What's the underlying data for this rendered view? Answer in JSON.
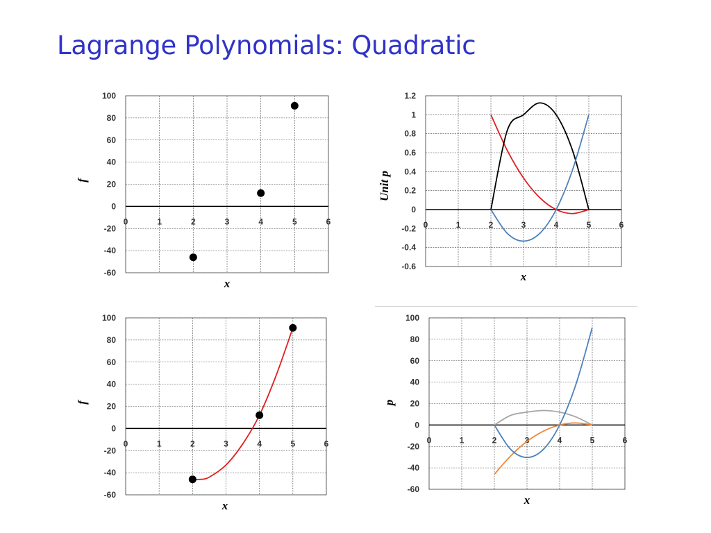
{
  "slide": {
    "title": "Lagrange Polynomials: Quadratic"
  },
  "chart_data": [
    {
      "id": "c1",
      "type": "scatter",
      "xlabel": "x",
      "ylabel": "f",
      "xlim": [
        0,
        6
      ],
      "ylim": [
        -60,
        100
      ],
      "xticks": [
        0,
        1,
        2,
        3,
        4,
        5,
        6
      ],
      "yticks": [
        -60,
        -40,
        -20,
        0,
        20,
        40,
        60,
        80,
        100
      ],
      "grid": true,
      "series": [
        {
          "color": "#000000",
          "points": [
            [
              2,
              -46
            ],
            [
              4,
              12
            ],
            [
              5,
              91
            ]
          ]
        }
      ]
    },
    {
      "id": "c2",
      "type": "line",
      "xlabel": "x",
      "ylabel": "Unit p",
      "xlim": [
        0,
        6
      ],
      "ylim": [
        -0.6,
        1.2
      ],
      "xticks": [
        0,
        1,
        2,
        3,
        4,
        5,
        6
      ],
      "yticks": [
        -0.6,
        -0.4,
        -0.2,
        0,
        0.2,
        0.4,
        0.6,
        0.8,
        1,
        1.2
      ],
      "grid": true,
      "series": [
        {
          "color": "#e02020",
          "x": [
            2,
            2.5,
            3,
            3.5,
            4,
            4.5,
            5
          ],
          "y": [
            1,
            0.625,
            0.333,
            0.125,
            0,
            -0.042,
            0
          ]
        },
        {
          "color": "#000000",
          "x": [
            2,
            2.5,
            3,
            3.5,
            4,
            4.5,
            5
          ],
          "y": [
            0,
            0.833,
            1,
            1.125,
            1,
            0.625,
            0
          ]
        },
        {
          "color": "#4f81bd",
          "x": [
            2,
            2.5,
            3,
            3.5,
            4,
            4.5,
            5
          ],
          "y": [
            0,
            -0.25,
            -0.333,
            -0.25,
            0,
            0.417,
            1
          ]
        }
      ]
    },
    {
      "id": "c3",
      "type": "line",
      "xlabel": "x",
      "ylabel": "f",
      "xlim": [
        0,
        6
      ],
      "ylim": [
        -60,
        100
      ],
      "xticks": [
        0,
        1,
        2,
        3,
        4,
        5,
        6
      ],
      "yticks": [
        -60,
        -40,
        -20,
        0,
        20,
        40,
        60,
        80,
        100
      ],
      "grid": true,
      "series": [
        {
          "color": "#e02020",
          "x": [
            2,
            2.25,
            2.5,
            3,
            3.5,
            4,
            4.5,
            5
          ],
          "y": [
            -46,
            -46,
            -44,
            -33,
            -14,
            12,
            48,
            91
          ]
        },
        {
          "color": "#000000",
          "points": [
            [
              2,
              -46
            ],
            [
              4,
              12
            ],
            [
              5,
              91
            ]
          ]
        }
      ]
    },
    {
      "id": "c4",
      "type": "line",
      "xlabel": "x",
      "ylabel": "p",
      "xlim": [
        0,
        6
      ],
      "ylim": [
        -60,
        100
      ],
      "xticks": [
        0,
        1,
        2,
        3,
        4,
        5,
        6
      ],
      "yticks": [
        -60,
        -40,
        -20,
        0,
        20,
        40,
        60,
        80,
        100
      ],
      "grid": true,
      "series": [
        {
          "color": "#a6a6a6",
          "x": [
            2,
            2.5,
            3,
            3.5,
            4,
            4.5,
            5
          ],
          "y": [
            0,
            9,
            12,
            13.5,
            12,
            7.5,
            0
          ]
        },
        {
          "color": "#f0883a",
          "x": [
            2,
            2.5,
            3,
            3.5,
            4,
            4.5,
            5
          ],
          "y": [
            -46,
            -28.8,
            -15.3,
            -5.8,
            0,
            1.9,
            0
          ]
        },
        {
          "color": "#4f81bd",
          "x": [
            2,
            2.5,
            3,
            3.5,
            4,
            4.5,
            5
          ],
          "y": [
            0,
            -22.8,
            -30.3,
            -22.8,
            0,
            38,
            91
          ]
        }
      ]
    }
  ]
}
